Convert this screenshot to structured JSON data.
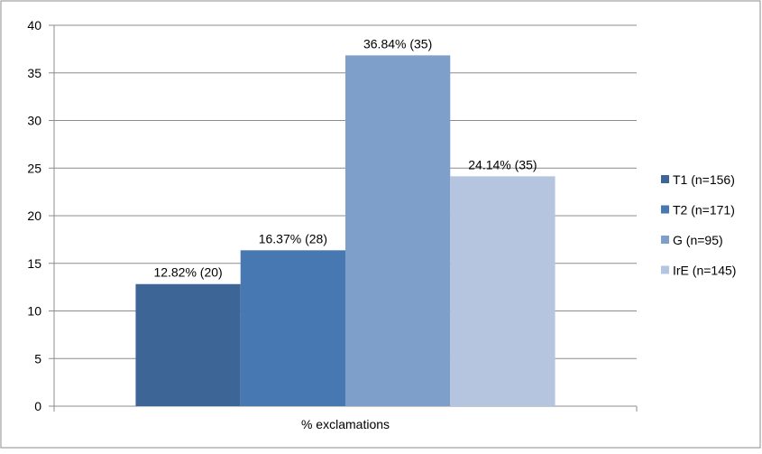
{
  "chart_data": {
    "type": "bar",
    "title": "",
    "xlabel": "",
    "ylabel": "",
    "categories": [
      "% exclamations"
    ],
    "ylim": [
      0,
      40
    ],
    "yticks": [
      0,
      5,
      10,
      15,
      20,
      25,
      30,
      35,
      40
    ],
    "ytick_labels": [
      "0",
      "5",
      "10",
      "15",
      "20",
      "25",
      "30",
      "35",
      "40"
    ],
    "grid": true,
    "legend_position": "right",
    "series": [
      {
        "name": "T1 (n=156)",
        "values": [
          12.82
        ],
        "label": "12.82% (20)",
        "color": "#3d6595"
      },
      {
        "name": "T2 (n=171)",
        "values": [
          16.37
        ],
        "label": "16.37% (28)",
        "color": "#4778b2"
      },
      {
        "name": "G (n=95)",
        "values": [
          36.84
        ],
        "label": "36.84% (35)",
        "color": "#7f9fcb"
      },
      {
        "name": "IrE (n=145)",
        "values": [
          24.14
        ],
        "label": "24.14% (35)",
        "color": "#b6c5df"
      }
    ]
  }
}
